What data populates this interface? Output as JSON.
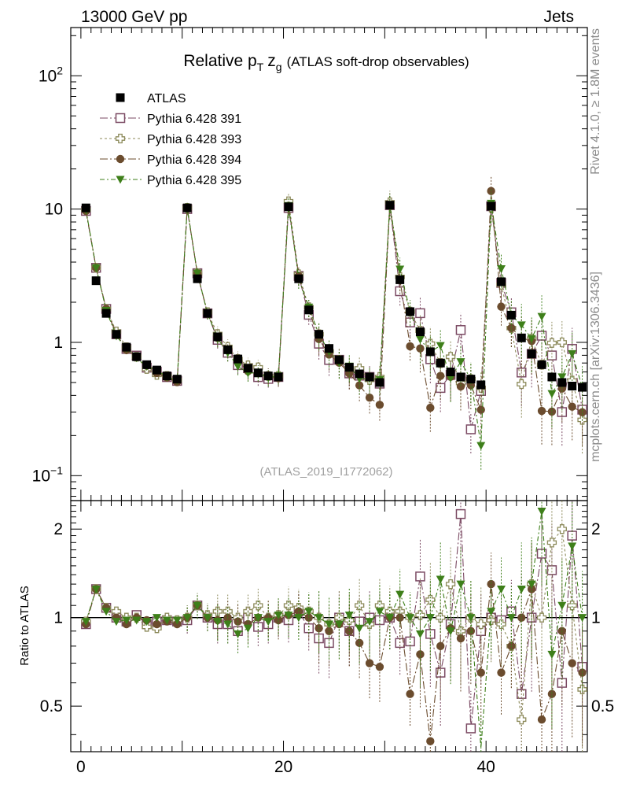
{
  "header": {
    "left": "13000 GeV pp",
    "right": "Jets"
  },
  "side": {
    "top": "Rivet 4.1.0, ≥ 1.8M events",
    "bottom": "mcplots.cern.ch [arXiv:1306.3436]"
  },
  "chart_data": [
    {
      "type": "scatter",
      "title": "Relative pT zg (ATLAS soft-drop observables)",
      "title_parts": {
        "main": "Relative p",
        "sub": "T",
        "z": "z",
        "zsub": "g",
        "rest": "(ATLAS soft-drop observables)"
      },
      "watermark": "(ATLAS_2019_I1772062)",
      "yscale": "log",
      "xlim": [
        -1,
        50
      ],
      "ylim": [
        0.065,
        230
      ],
      "xticks": [
        0,
        20,
        40
      ],
      "yticks": [
        {
          "value": 0.1,
          "base": "10",
          "exp": "−1"
        },
        {
          "value": 1,
          "label": "1"
        },
        {
          "value": 10,
          "label": "10"
        },
        {
          "value": 100,
          "base": "10",
          "exp": "2"
        }
      ],
      "legend_position": "top-left",
      "data": {
        "name": "ATLAS",
        "x": [
          0.5,
          1.5,
          2.5,
          3.5,
          4.5,
          5.5,
          6.5,
          7.5,
          8.5,
          9.5,
          10.5,
          11.5,
          12.5,
          13.5,
          14.5,
          15.5,
          16.5,
          17.5,
          18.5,
          19.5,
          20.5,
          21.5,
          22.5,
          23.5,
          24.5,
          25.5,
          26.5,
          27.5,
          28.5,
          29.5,
          30.5,
          31.5,
          32.5,
          33.5,
          34.5,
          35.5,
          36.5,
          37.5,
          38.5,
          39.5,
          40.5,
          41.5,
          42.5,
          43.5,
          44.5,
          45.5,
          46.5,
          47.5,
          48.5,
          49.5
        ],
        "y": [
          10.2,
          2.9,
          1.65,
          1.15,
          0.92,
          0.78,
          0.68,
          0.62,
          0.56,
          0.53,
          10.2,
          3.0,
          1.65,
          1.1,
          0.88,
          0.75,
          0.64,
          0.59,
          0.56,
          0.55,
          10.4,
          3.0,
          1.75,
          1.15,
          0.9,
          0.74,
          0.65,
          0.58,
          0.55,
          0.5,
          10.7,
          2.95,
          1.7,
          1.2,
          0.85,
          0.7,
          0.6,
          0.55,
          0.53,
          0.48,
          10.5,
          2.85,
          1.6,
          1.08,
          0.82,
          0.68,
          0.55,
          0.5,
          0.47,
          0.46
        ]
      },
      "series": [
        {
          "name": "Pythia 6.428 391",
          "color": "#7B4A63",
          "marker": "open-square",
          "dash": "10 3 2 3",
          "ratio": [
            0.95,
            1.25,
            1.08,
            1.0,
            0.97,
            1.02,
            0.95,
            0.97,
            0.98,
            0.97,
            0.98,
            1.1,
            1.0,
            0.95,
            0.95,
            0.9,
            1.0,
            0.93,
            0.95,
            1.0,
            0.98,
            1.05,
            0.92,
            0.85,
            0.82,
            1.0,
            0.9,
            0.97,
            1.0,
            0.98,
            1.0,
            0.82,
            0.83,
            1.38,
            0.88,
            0.65,
            0.95,
            2.25,
            0.42,
            0.9,
            1.0,
            0.98,
            1.05,
            0.55,
            1.0,
            1.65,
            1.45,
            0.6,
            1.9,
            0.68
          ]
        },
        {
          "name": "Pythia 6.428 393",
          "color": "#8C8A5A",
          "marker": "open-cross",
          "dash": "3 3",
          "ratio": [
            0.97,
            1.25,
            1.08,
            1.05,
            1.0,
            1.0,
            0.93,
            0.92,
            1.0,
            0.98,
            1.0,
            1.1,
            1.02,
            1.05,
            1.05,
            1.0,
            1.05,
            1.1,
            1.0,
            1.02,
            1.1,
            1.08,
            1.05,
            1.0,
            0.95,
            1.0,
            0.98,
            1.1,
            0.95,
            1.1,
            1.05,
            1.05,
            1.0,
            1.02,
            1.15,
            1.0,
            1.3,
            0.9,
            1.0,
            0.95,
            0.98,
            0.95,
            0.8,
            0.45,
            1.3,
            1.0,
            1.8,
            2.0,
            1.1,
            0.57
          ]
        },
        {
          "name": "Pythia 6.428 394",
          "color": "#6B4C2E",
          "marker": "filled-circle",
          "dash": "10 3 2 3",
          "ratio": [
            0.95,
            1.25,
            1.08,
            1.0,
            0.95,
            1.0,
            0.98,
            0.95,
            0.97,
            0.95,
            1.0,
            1.1,
            1.0,
            0.98,
            1.0,
            0.97,
            0.95,
            1.0,
            1.0,
            0.98,
            1.02,
            1.05,
            1.0,
            0.92,
            0.9,
            0.95,
            0.9,
            0.82,
            0.7,
            0.68,
            1.0,
            1.0,
            0.55,
            0.75,
            0.38,
            0.8,
            0.92,
            0.85,
            0.9,
            0.65,
            1.3,
            0.65,
            0.8,
            1.0,
            1.25,
            0.45,
            0.55,
            0.9,
            0.7,
            0.65
          ]
        },
        {
          "name": "Pythia 6.428 395",
          "color": "#3E7F1A",
          "marker": "filled-triangle-down",
          "dash": "6 3 2 3",
          "ratio": [
            0.97,
            1.25,
            1.05,
            0.97,
            0.98,
            0.98,
            0.97,
            1.0,
            0.98,
            0.98,
            1.0,
            1.1,
            1.0,
            0.97,
            0.95,
            0.88,
            0.92,
            1.0,
            0.97,
            1.02,
            1.02,
            1.0,
            1.05,
            1.0,
            0.95,
            0.95,
            1.02,
            0.92,
            0.97,
            1.05,
            1.0,
            1.2,
            1.0,
            0.88,
            1.0,
            1.35,
            0.9,
            1.3,
            1.0,
            0.35,
            1.05,
            1.25,
            1.0,
            1.25,
            1.3,
            2.3,
            0.75,
            1.1,
            1.75,
            1.0
          ]
        }
      ]
    },
    {
      "type": "scatter",
      "ylabel": "Ratio to ATLAS",
      "xlim": [
        -1,
        50
      ],
      "ylim": [
        0.35,
        2.5
      ],
      "yticks": [
        {
          "value": 0.5,
          "label": "0.5"
        },
        {
          "value": 1,
          "label": "1"
        },
        {
          "value": 2,
          "label": "2"
        }
      ],
      "reference_line": 1.0
    }
  ]
}
